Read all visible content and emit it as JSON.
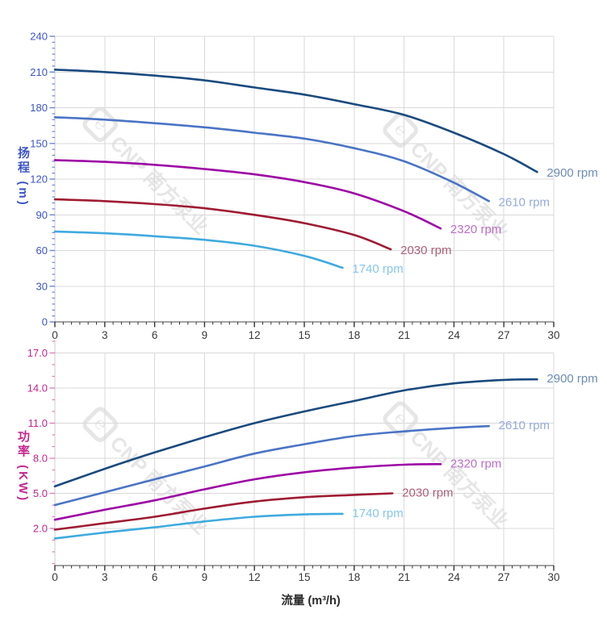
{
  "watermark": {
    "logo_char": "℮",
    "text": "CNP 南方泵业",
    "color": "#d6d6d6"
  },
  "axis_colors": {
    "head_tick_label": "#3c55c8",
    "head_tick": "#6b85dd",
    "power_tick_label": "#c4278f",
    "power_tick": "#e081bf",
    "x_tick_label": "#3a3a3a",
    "x_tick": "#333333",
    "grid": "#d9d9d9",
    "axis_line_left": "#cccccc",
    "axis_line_bottom": "#4a4a4a"
  },
  "chart_data": [
    {
      "type": "line",
      "title": "",
      "ylabel": "扬程 (m)",
      "xlabel": "",
      "xlim": [
        0,
        30
      ],
      "ylim": [
        0,
        240
      ],
      "yticks": [
        0,
        30,
        60,
        90,
        120,
        150,
        180,
        210,
        240
      ],
      "xticks": [
        0,
        3,
        6,
        9,
        12,
        15,
        18,
        21,
        24,
        27,
        30
      ],
      "grid": true,
      "legend_position": "end-of-line labels",
      "series": [
        {
          "name": "2900 rpm",
          "color": "#1a4a7e",
          "label_color": "#6d8cb3",
          "points": [
            [
              0,
              212
            ],
            [
              3,
              210
            ],
            [
              6,
              207
            ],
            [
              9,
              203
            ],
            [
              12,
              197
            ],
            [
              15,
              191
            ],
            [
              18,
              183
            ],
            [
              21,
              174
            ],
            [
              24,
              159
            ],
            [
              27,
              141
            ],
            [
              29,
              126
            ]
          ]
        },
        {
          "name": "2610 rpm",
          "color": "#4a74c4",
          "label_color": "#96a9dc",
          "points": [
            [
              0,
              172
            ],
            [
              3,
              170
            ],
            [
              6,
              167
            ],
            [
              9,
              163.5
            ],
            [
              12,
              159
            ],
            [
              15,
              154
            ],
            [
              18,
              146
            ],
            [
              21,
              135
            ],
            [
              24,
              117
            ],
            [
              26.1,
              101.5
            ]
          ]
        },
        {
          "name": "2320 rpm",
          "color": "#9c08a4",
          "label_color": "#bb6ec7",
          "points": [
            [
              0,
              136
            ],
            [
              3,
              134.5
            ],
            [
              6,
              132
            ],
            [
              9,
              128.5
            ],
            [
              12,
              124
            ],
            [
              15,
              117.5
            ],
            [
              18,
              108
            ],
            [
              21,
              93
            ],
            [
              23.2,
              78.5
            ]
          ]
        },
        {
          "name": "2030 rpm",
          "color": "#9e1b33",
          "label_color": "#ad5f74",
          "points": [
            [
              0,
              103
            ],
            [
              3,
              101.5
            ],
            [
              6,
              99
            ],
            [
              9,
              95.5
            ],
            [
              12,
              90
            ],
            [
              15,
              83
            ],
            [
              18,
              73
            ],
            [
              20.2,
              61
            ]
          ]
        },
        {
          "name": "1740 rpm",
          "color": "#3faade",
          "label_color": "#85c6ee",
          "points": [
            [
              0,
              76
            ],
            [
              3,
              74.5
            ],
            [
              6,
              72
            ],
            [
              9,
              69
            ],
            [
              12,
              64
            ],
            [
              15,
              55.5
            ],
            [
              17.3,
              45.5
            ]
          ]
        }
      ]
    },
    {
      "type": "line",
      "title": "",
      "ylabel": "功率 (KW)",
      "xlabel": "流量 (m³/h)",
      "xlim": [
        0,
        30
      ],
      "ylim": [
        -1.17,
        18.14
      ],
      "yticks": [
        2,
        5,
        8,
        11,
        14,
        17
      ],
      "xticks": [
        0,
        3,
        6,
        9,
        12,
        15,
        18,
        21,
        24,
        27,
        30
      ],
      "grid": true,
      "legend_position": "end-of-line labels",
      "series": [
        {
          "name": "2900 rpm",
          "color": "#1a4a7e",
          "label_color": "#6d8cb3",
          "points": [
            [
              0,
              5.6
            ],
            [
              3,
              7.1
            ],
            [
              6,
              8.5
            ],
            [
              9,
              9.8
            ],
            [
              12,
              11.0
            ],
            [
              15,
              12.0
            ],
            [
              18,
              12.9
            ],
            [
              21,
              13.8
            ],
            [
              24,
              14.4
            ],
            [
              27,
              14.7
            ],
            [
              29,
              14.75
            ]
          ]
        },
        {
          "name": "2610 rpm",
          "color": "#4a74c4",
          "label_color": "#96a9dc",
          "points": [
            [
              0,
              4.0
            ],
            [
              3,
              5.1
            ],
            [
              6,
              6.2
            ],
            [
              9,
              7.3
            ],
            [
              12,
              8.4
            ],
            [
              15,
              9.2
            ],
            [
              18,
              9.9
            ],
            [
              21,
              10.3
            ],
            [
              24,
              10.6
            ],
            [
              26.1,
              10.75
            ]
          ]
        },
        {
          "name": "2320 rpm",
          "color": "#9c08a4",
          "label_color": "#bb6ec7",
          "points": [
            [
              0,
              2.75
            ],
            [
              3,
              3.6
            ],
            [
              6,
              4.4
            ],
            [
              9,
              5.35
            ],
            [
              12,
              6.2
            ],
            [
              15,
              6.8
            ],
            [
              18,
              7.2
            ],
            [
              21,
              7.45
            ],
            [
              23.2,
              7.5
            ]
          ]
        },
        {
          "name": "2030 rpm",
          "color": "#9e1b33",
          "label_color": "#ad5f74",
          "points": [
            [
              0,
              1.9
            ],
            [
              3,
              2.45
            ],
            [
              6,
              3.0
            ],
            [
              9,
              3.7
            ],
            [
              12,
              4.3
            ],
            [
              15,
              4.67
            ],
            [
              18,
              4.87
            ],
            [
              20.3,
              5.0
            ]
          ]
        },
        {
          "name": "1740 rpm",
          "color": "#3faade",
          "label_color": "#85c6ee",
          "points": [
            [
              0,
              1.15
            ],
            [
              3,
              1.65
            ],
            [
              6,
              2.1
            ],
            [
              9,
              2.6
            ],
            [
              12,
              3.0
            ],
            [
              15,
              3.2
            ],
            [
              17.3,
              3.25
            ]
          ]
        }
      ]
    }
  ]
}
